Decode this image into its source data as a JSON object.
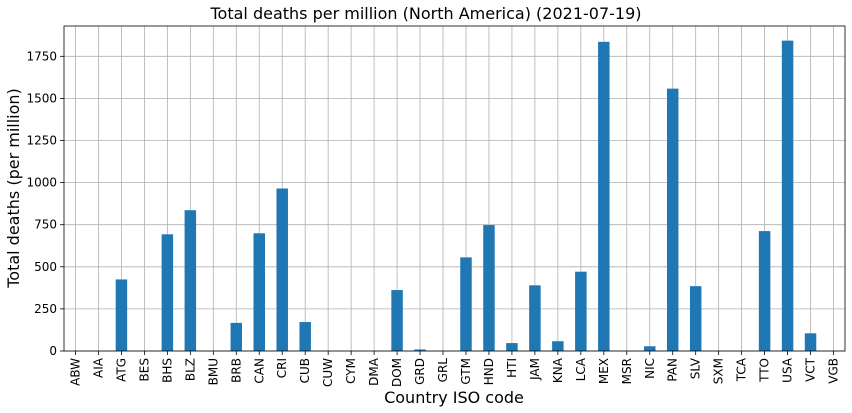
{
  "chart_data": {
    "type": "bar",
    "title": "Total deaths per million (North America) (2021-07-19)",
    "xlabel": "Country ISO code",
    "ylabel": "Total deaths (per million)",
    "grid": true,
    "bar_color": "#1f77b4",
    "ylim": [
      0,
      1930
    ],
    "yticks": [
      0,
      250,
      500,
      750,
      1000,
      1250,
      1500,
      1750
    ],
    "categories": [
      "ABW",
      "AIA",
      "ATG",
      "BES",
      "BHS",
      "BLZ",
      "BMU",
      "BRB",
      "CAN",
      "CRI",
      "CUB",
      "CUW",
      "CYM",
      "DMA",
      "DOM",
      "GRD",
      "GRL",
      "GTM",
      "HND",
      "HTI",
      "JAM",
      "KNA",
      "LCA",
      "MEX",
      "MSR",
      "NIC",
      "PAN",
      "SLV",
      "SXM",
      "TCA",
      "TTO",
      "USA",
      "VCT",
      "VGB"
    ],
    "values": [
      0,
      0,
      425,
      0,
      693,
      836,
      0,
      167,
      699,
      965,
      172,
      0,
      0,
      0,
      362,
      9,
      0,
      556,
      748,
      47,
      390,
      58,
      471,
      1836,
      0,
      28,
      1558,
      385,
      0,
      0,
      712,
      1843,
      105,
      0
    ]
  }
}
